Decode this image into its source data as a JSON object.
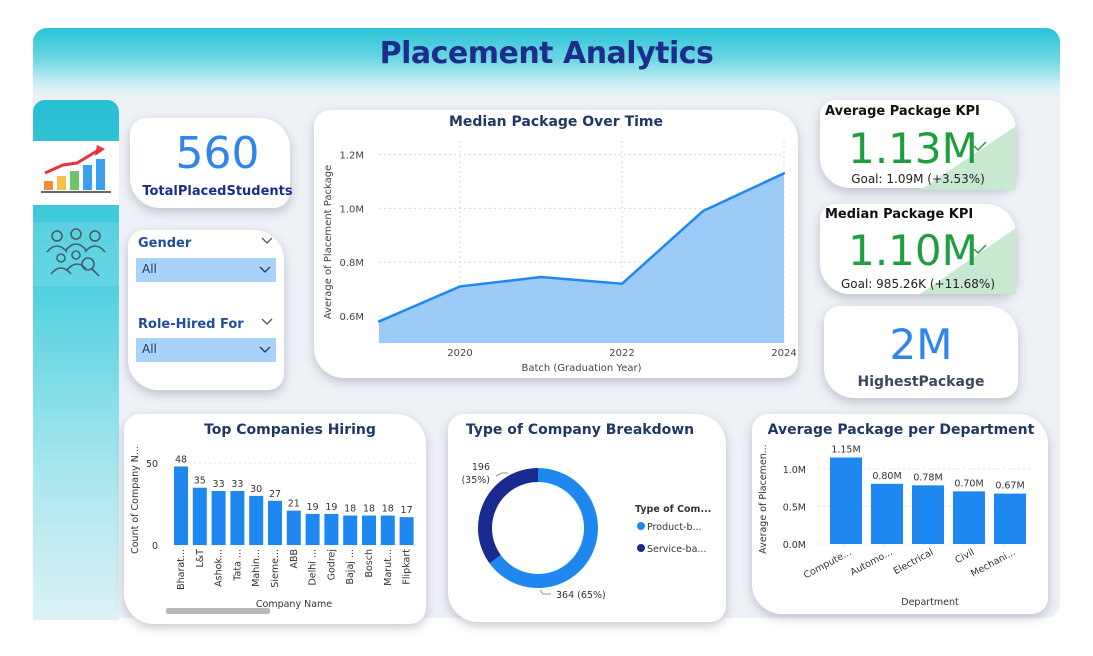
{
  "header": {
    "title": "Placement Analytics"
  },
  "nav": {
    "items": [
      {
        "icon": "bar-chart-trend-icon",
        "active": true
      },
      {
        "icon": "people-search-icon",
        "active": false
      }
    ]
  },
  "total_placed": {
    "value": "560",
    "label": "TotalPlacedStudents"
  },
  "slicers": {
    "gender": {
      "label": "Gender",
      "value": "All"
    },
    "role": {
      "label": "Role-Hired For",
      "value": "All"
    }
  },
  "kpis": {
    "average": {
      "title": "Average Package KPI",
      "value": "1.13M",
      "goal": "Goal: 1.09M (+3.53%)"
    },
    "median": {
      "title": "Median Package KPI",
      "value": "1.10M",
      "goal": "Goal: 985.26K (+11.68%)"
    },
    "highest": {
      "value": "2M",
      "label": "HighestPackage"
    }
  },
  "colors": {
    "accent_blue": "#1e88f0",
    "area_fill": "#9ccbf7",
    "kpi_green": "#1e9e3e",
    "product_color": "#1e88f0",
    "service_color": "#1b2a8f",
    "title_navy": "#1c2d8a"
  },
  "chart_data": [
    {
      "type": "area",
      "title": "Median Package Over Time",
      "xlabel": "Batch (Graduation Year)",
      "ylabel": "Average of Placement Package",
      "x": [
        2019,
        2020,
        2021,
        2022,
        2023,
        2024
      ],
      "values": [
        580000,
        710000,
        745000,
        720000,
        990000,
        1130000
      ],
      "ylim": [
        500000,
        1250000
      ],
      "yticks": [
        "0.6M",
        "0.8M",
        "1.0M",
        "1.2M"
      ],
      "yticks_values": [
        600000,
        800000,
        1000000,
        1200000
      ],
      "xticks": [
        "2020",
        "2022",
        "2024"
      ],
      "grid": true
    },
    {
      "type": "bar",
      "title": "Top Companies Hiring",
      "xlabel": "Company Name",
      "ylabel": "Count of Company N...",
      "categories": [
        "Bharat...",
        "L&T",
        "Ashok...",
        "Tata ...",
        "Mahin...",
        "Sieme...",
        "ABB",
        "Delhi ...",
        "Godrej",
        "Bajaj ...",
        "Bosch",
        "Marut...",
        "Flipkart"
      ],
      "values": [
        48,
        35,
        33,
        33,
        30,
        27,
        21,
        19,
        19,
        18,
        18,
        18,
        17
      ],
      "ylim": [
        0,
        55
      ],
      "yticks": [
        "0",
        "50"
      ],
      "yticks_values": [
        0,
        50
      ]
    },
    {
      "type": "pie",
      "title": "Type of Company Breakdown",
      "legend_title": "Type of Com...",
      "categories": [
        "Product-b...",
        "Service-ba..."
      ],
      "values": [
        364,
        196
      ],
      "labels": [
        "364 (65%)",
        "196 (35%)"
      ],
      "legend": "right"
    },
    {
      "type": "bar",
      "title": "Average Package per Department",
      "xlabel": "Department",
      "ylabel": "Average of Placemen...",
      "categories": [
        "Compute...",
        "Automo...",
        "Electrical",
        "Civil",
        "Mechani..."
      ],
      "values": [
        1150000,
        800000,
        780000,
        700000,
        670000
      ],
      "labels": [
        "1.15M",
        "0.80M",
        "0.78M",
        "0.70M",
        "0.67M"
      ],
      "ylim": [
        0,
        1250000
      ],
      "yticks": [
        "0.0M",
        "0.5M",
        "1.0M"
      ],
      "yticks_values": [
        0,
        500000,
        1000000
      ]
    }
  ]
}
